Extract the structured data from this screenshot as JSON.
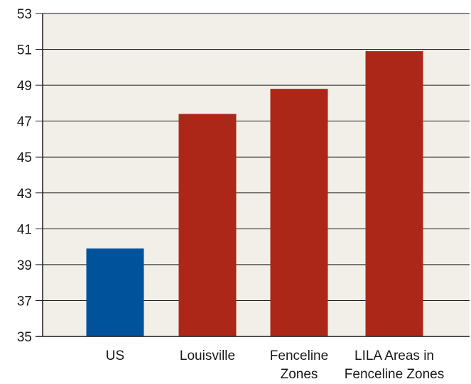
{
  "chart_data": {
    "type": "bar",
    "title": "",
    "xlabel": "",
    "ylabel": "",
    "categories": [
      "US",
      "Louisville",
      "Fenceline Zones",
      "LILA Areas in Fenceline Zones"
    ],
    "category_label_lines": [
      [
        "US"
      ],
      [
        "Louisville"
      ],
      [
        "Fenceline",
        "Zones"
      ],
      [
        "LILA Areas in",
        "Fenceline Zones"
      ]
    ],
    "values": [
      39.9,
      47.4,
      48.8,
      50.9
    ],
    "colors": [
      "#00529b",
      "#ad2719",
      "#ad2719",
      "#ad2719"
    ],
    "ylim": [
      35,
      53
    ],
    "yticks": [
      35,
      37,
      39,
      41,
      43,
      45,
      47,
      49,
      51,
      53
    ],
    "plot_background": "#f1efe8",
    "grid": true,
    "legend": "none"
  }
}
